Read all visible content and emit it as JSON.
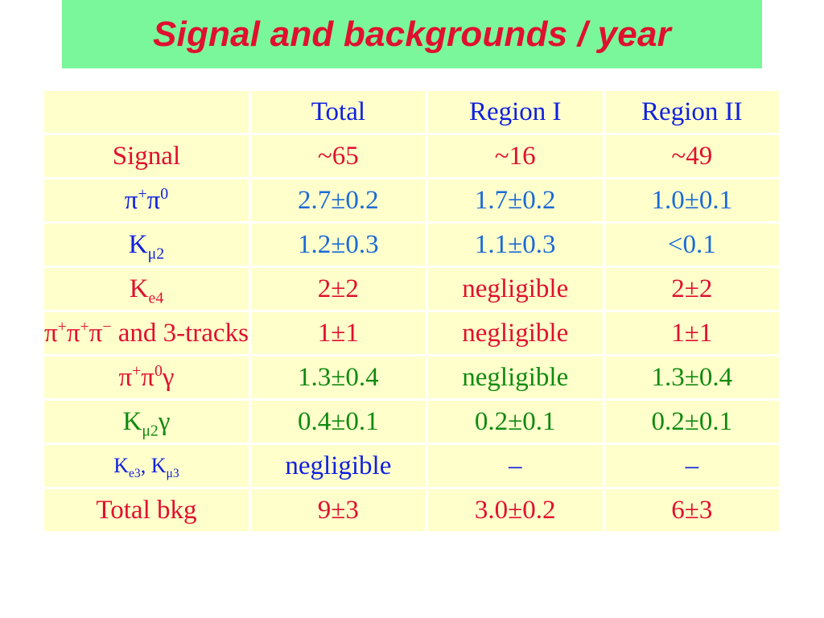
{
  "title": "Signal and backgrounds / year",
  "header": [
    "",
    "Total",
    "Region I",
    "Region II"
  ],
  "rows": [
    {
      "label": "Signal",
      "total": "~65",
      "region1": "~16",
      "region2": "~49"
    },
    {
      "label_parts": [
        "π",
        "+",
        "π",
        "0"
      ],
      "total": "2.7±0.2",
      "region1": "1.7±0.2",
      "region2": "1.0±0.1"
    },
    {
      "label_parts": [
        "K",
        "μ2"
      ],
      "total": "1.2±0.3",
      "region1": "1.1±0.3",
      "region2": "<0.1"
    },
    {
      "label_parts": [
        "K",
        "e4"
      ],
      "total": "2±2",
      "region1": "negligible",
      "region2": "2±2"
    },
    {
      "label_parts": [
        "π",
        "+",
        "π",
        "+",
        "π",
        "−",
        " and 3-tracks"
      ],
      "total": "1±1",
      "region1": "negligible",
      "region2": "1±1"
    },
    {
      "label_parts": [
        "π",
        "+",
        "π",
        "0",
        "γ"
      ],
      "total": "1.3±0.4",
      "region1": "negligible",
      "region2": "1.3±0.4"
    },
    {
      "label_parts": [
        "K",
        "μ2",
        "γ"
      ],
      "total": "0.4±0.1",
      "region1": "0.2±0.1",
      "region2": "0.2±0.1"
    },
    {
      "label_parts": [
        "K",
        "e3",
        ", K",
        "μ3"
      ],
      "total": "negligible",
      "region1": "–",
      "region2": "–"
    },
    {
      "label": "Total bkg",
      "total": "9±3",
      "region1": "3.0±0.2",
      "region2": "6±3"
    }
  ]
}
